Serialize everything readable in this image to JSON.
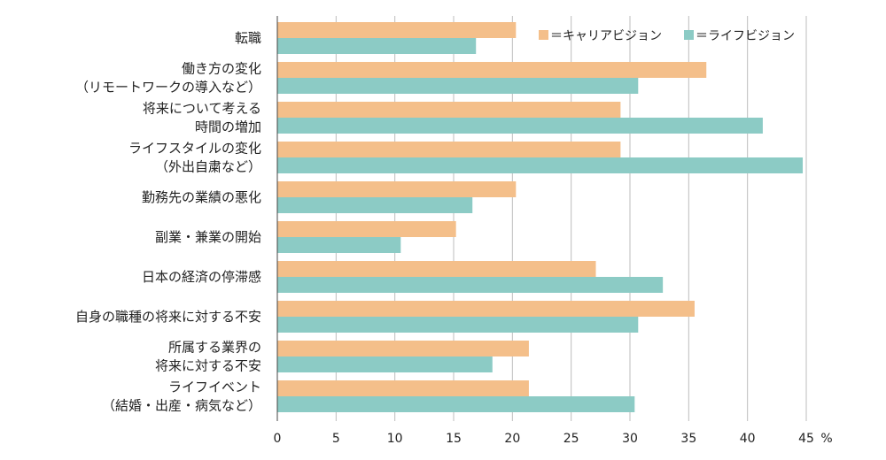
{
  "chart_data": {
    "type": "bar",
    "orientation": "horizontal",
    "categories": [
      [
        "転職"
      ],
      [
        "働き方の変化",
        "（リモートワークの導入など）"
      ],
      [
        "将来について考える",
        "時間の増加"
      ],
      [
        "ライフスタイルの変化",
        "（外出自粛など）"
      ],
      [
        "勤務先の業績の悪化"
      ],
      [
        "副業・兼業の開始"
      ],
      [
        "日本の経済の停滞感"
      ],
      [
        "自身の職種の将来に対する不安"
      ],
      [
        "所属する業界の",
        "将来に対する不安"
      ],
      [
        "ライフイベント",
        "（結婚・出産・病気など）"
      ]
    ],
    "series": [
      {
        "name": "＝キャリアビジョン",
        "color": "#f4bf8a",
        "values": [
          20.3,
          36.5,
          29.2,
          29.2,
          20.3,
          15.2,
          27.1,
          35.5,
          21.4,
          21.4
        ]
      },
      {
        "name": "＝ライフビジョン",
        "color": "#8ccbc5",
        "values": [
          16.9,
          30.7,
          41.3,
          44.7,
          16.6,
          10.5,
          32.8,
          30.7,
          18.3,
          30.4
        ]
      }
    ],
    "xlim": [
      0,
      45
    ],
    "xticks": [
      "0",
      "5",
      "10",
      "15",
      "20",
      "25",
      "30",
      "35",
      "40",
      "45"
    ],
    "unit": "%",
    "grid": "vertical",
    "legend": "top-right"
  }
}
